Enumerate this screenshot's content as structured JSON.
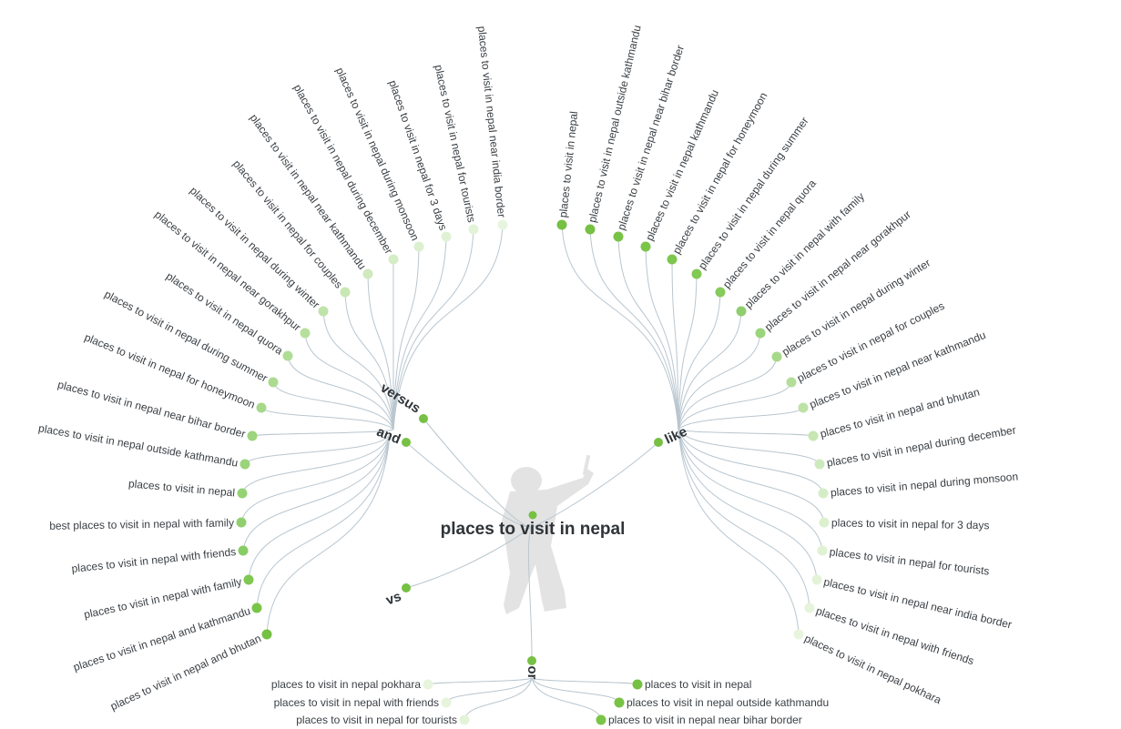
{
  "center": {
    "title": "places to visit in nepal",
    "dot_color": "#76c043"
  },
  "colors": {
    "link": "#b9c6cf",
    "silhouette": "#e3e3e3"
  },
  "hubs": [
    {
      "id": "versus",
      "label": "versus",
      "color": "#76c043"
    },
    {
      "id": "and",
      "label": "and",
      "color": "#76c043"
    },
    {
      "id": "like",
      "label": "like",
      "color": "#76c043"
    },
    {
      "id": "vs",
      "label": "vs",
      "color": "#76c043"
    },
    {
      "id": "or",
      "label": "or",
      "color": "#76c043"
    }
  ],
  "leaves": [
    {
      "hub": "versus",
      "label": "places to visit in nepal near india border",
      "color": "#e8f5de"
    },
    {
      "hub": "versus",
      "label": "places to visit in nepal for tourists",
      "color": "#e3f3d8"
    },
    {
      "hub": "versus",
      "label": "places to visit in nepal for 3 days",
      "color": "#e0f2d4"
    },
    {
      "hub": "versus",
      "label": "places to visit in nepal during monsoon",
      "color": "#dcf0cf"
    },
    {
      "hub": "versus",
      "label": "places to visit in nepal during december",
      "color": "#d5edc6"
    },
    {
      "hub": "versus",
      "label": "places to visit in nepal near kathmandu",
      "color": "#cfeabe"
    },
    {
      "hub": "versus",
      "label": "places to visit in nepal for couples",
      "color": "#c8e7b5"
    },
    {
      "hub": "versus",
      "label": "places to visit in nepal during winter",
      "color": "#bfe3a9"
    },
    {
      "hub": "versus",
      "label": "places to visit in nepal near gorakhpur",
      "color": "#b6df9d"
    },
    {
      "hub": "versus",
      "label": "places to visit in nepal quora",
      "color": "#b0dd95"
    },
    {
      "hub": "versus",
      "label": "places to visit in nepal during summer",
      "color": "#acdb90"
    },
    {
      "hub": "versus",
      "label": "places to visit in nepal for honeymoon",
      "color": "#a6d98a"
    },
    {
      "hub": "versus",
      "label": "places to visit in nepal near bihar border",
      "color": "#9dd47e"
    },
    {
      "hub": "and",
      "label": "places to visit in nepal outside kathmandu",
      "color": "#9ad47b"
    },
    {
      "hub": "and",
      "label": "places to visit in nepal",
      "color": "#95d275"
    },
    {
      "hub": "and",
      "label": "best places to visit in nepal with family",
      "color": "#90cf6f"
    },
    {
      "hub": "and",
      "label": "places to visit in nepal with friends",
      "color": "#88cc65"
    },
    {
      "hub": "and",
      "label": "places to visit in nepal with family",
      "color": "#7fc852"
    },
    {
      "hub": "and",
      "label": "places to visit in nepal and kathmandu",
      "color": "#7ac548"
    },
    {
      "hub": "and",
      "label": "places to visit in nepal and bhutan",
      "color": "#76c043"
    },
    {
      "hub": "like",
      "label": "places to visit in nepal",
      "color": "#76c043"
    },
    {
      "hub": "like",
      "label": "places to visit in nepal outside kathmandu",
      "color": "#76c043"
    },
    {
      "hub": "like",
      "label": "places to visit in nepal near bihar border",
      "color": "#78c246"
    },
    {
      "hub": "like",
      "label": "places to visit in nepal kathmandu",
      "color": "#7ac548"
    },
    {
      "hub": "like",
      "label": "places to visit in nepal for honeymoon",
      "color": "#7ec74e"
    },
    {
      "hub": "like",
      "label": "places to visit in nepal during summer",
      "color": "#82c955"
    },
    {
      "hub": "like",
      "label": "places to visit in nepal quora",
      "color": "#86cb5c"
    },
    {
      "hub": "like",
      "label": "places to visit in nepal with family",
      "color": "#8fce6c"
    },
    {
      "hub": "like",
      "label": "places to visit in nepal near gorakhpur",
      "color": "#9ad47b"
    },
    {
      "hub": "like",
      "label": "places to visit in nepal during winter",
      "color": "#a6d98a"
    },
    {
      "hub": "like",
      "label": "places to visit in nepal for couples",
      "color": "#b3de9a"
    },
    {
      "hub": "like",
      "label": "places to visit in nepal near kathmandu",
      "color": "#bde2a6"
    },
    {
      "hub": "like",
      "label": "places to visit in nepal and bhutan",
      "color": "#c6e6b2"
    },
    {
      "hub": "like",
      "label": "places to visit in nepal during december",
      "color": "#cdeabd"
    },
    {
      "hub": "like",
      "label": "places to visit in nepal during monsoon",
      "color": "#d5edc6"
    },
    {
      "hub": "like",
      "label": "places to visit in nepal for 3 days",
      "color": "#dcf0cf"
    },
    {
      "hub": "like",
      "label": "places to visit in nepal for tourists",
      "color": "#e0f2d4"
    },
    {
      "hub": "like",
      "label": "places to visit in nepal near india border",
      "color": "#e3f3d8"
    },
    {
      "hub": "like",
      "label": "places to visit in nepal with friends",
      "color": "#e6f4dc"
    },
    {
      "hub": "like",
      "label": "places to visit in nepal pokhara",
      "color": "#e8f5de"
    },
    {
      "hub": "or",
      "label": "places to visit in nepal pokhara",
      "color": "#e8f5de"
    },
    {
      "hub": "or",
      "label": "places to visit in nepal with friends",
      "color": "#e6f4dc"
    },
    {
      "hub": "or",
      "label": "places to visit in nepal for tourists",
      "color": "#e3f3d8"
    },
    {
      "hub": "or",
      "label": "places to visit in nepal",
      "color": "#76c043"
    },
    {
      "hub": "or",
      "label": "places to visit in nepal outside kathmandu",
      "color": "#78c246"
    },
    {
      "hub": "or",
      "label": "places to visit in nepal near bihar border",
      "color": "#7ac548"
    }
  ]
}
